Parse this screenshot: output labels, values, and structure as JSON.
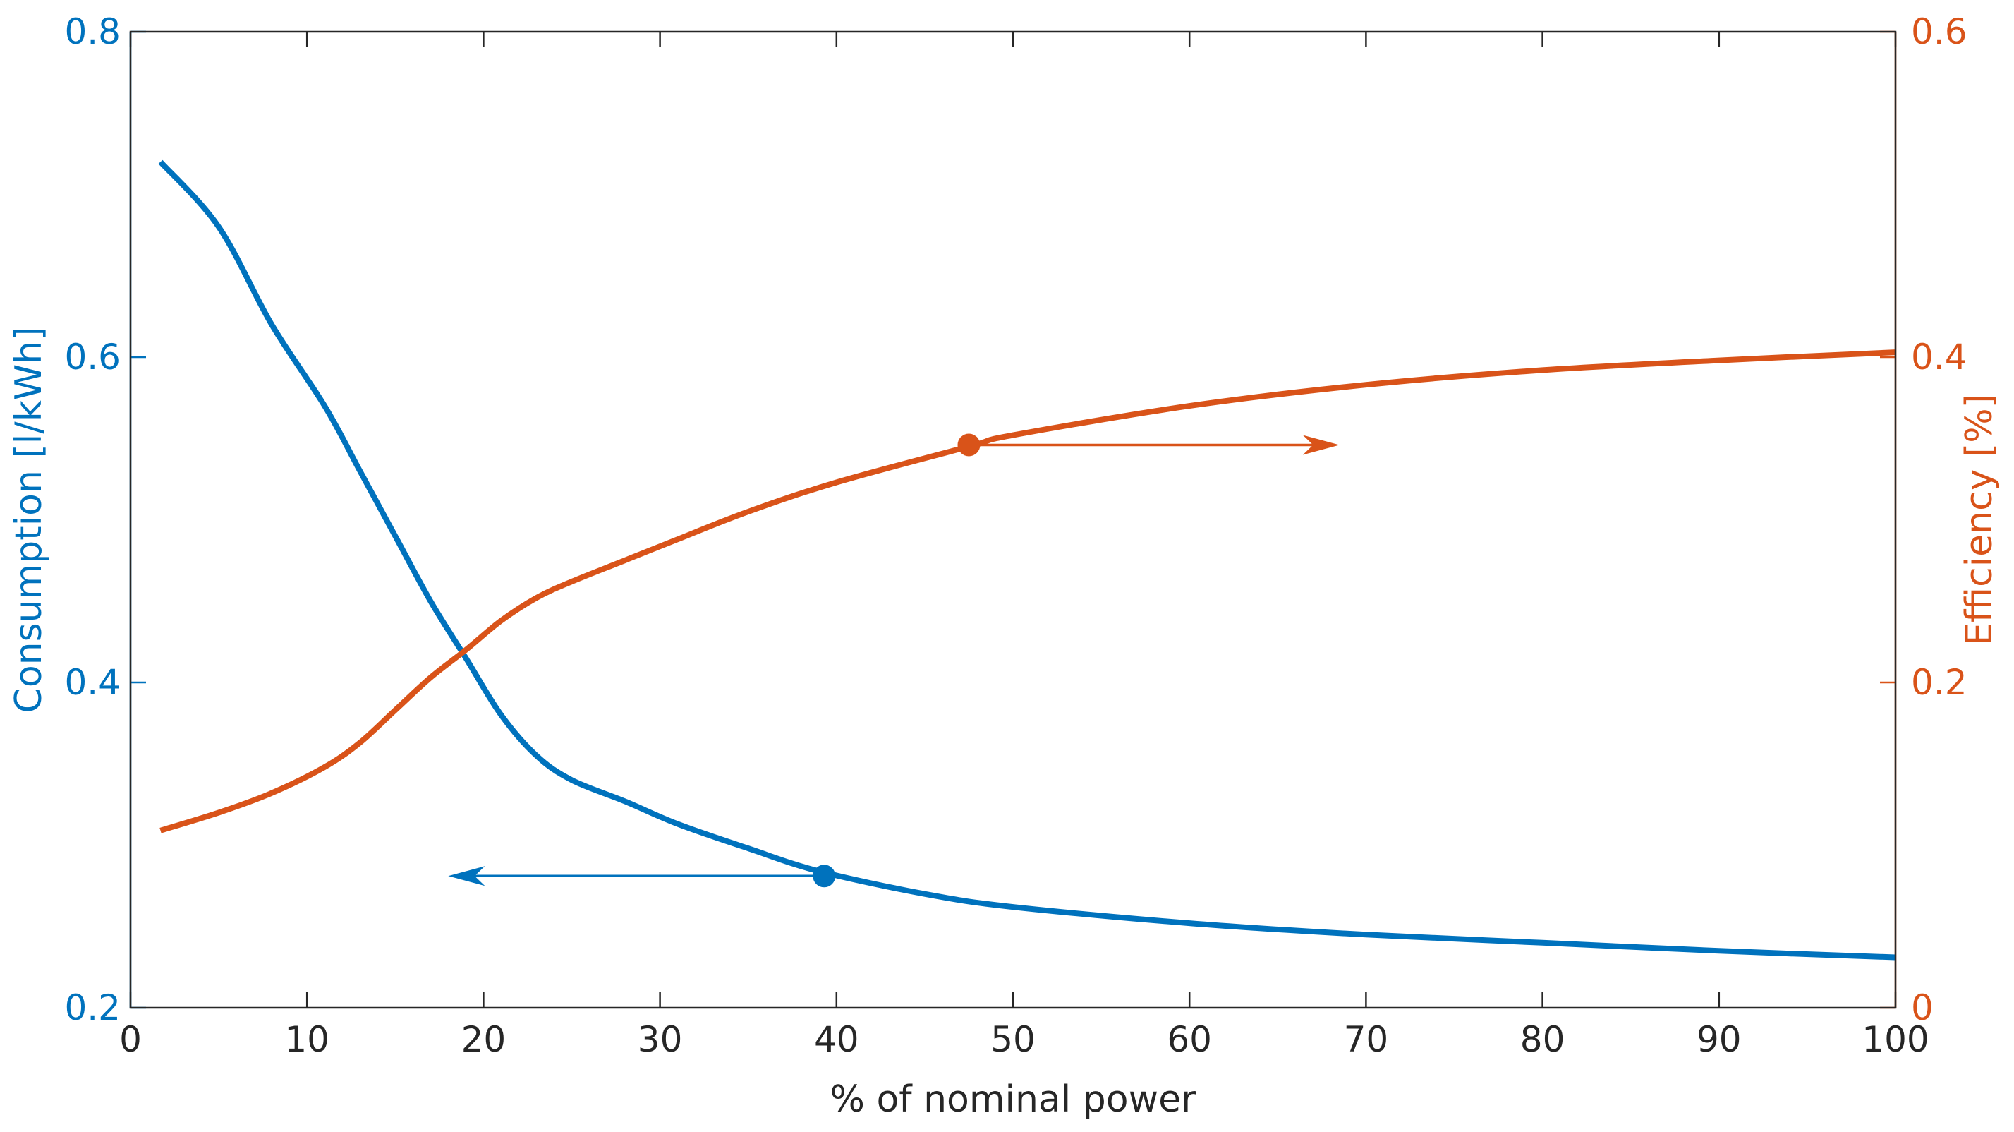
{
  "chart_data": {
    "type": "line",
    "title": "",
    "xlabel": "% of nominal power",
    "xlim": [
      0,
      100
    ],
    "x_ticks": [
      "0",
      "10",
      "20",
      "30",
      "40",
      "50",
      "60",
      "70",
      "80",
      "90",
      "100"
    ],
    "y_left": {
      "label": "Consumption [l/kWh]",
      "lim": [
        0.2,
        0.8
      ],
      "ticks": [
        "0.2",
        "0.4",
        "0.6",
        "0.8"
      ],
      "color": "#0072BD"
    },
    "y_right": {
      "label": "Efficiency [%]",
      "lim": [
        0,
        0.6
      ],
      "ticks": [
        "0",
        "0.2",
        "0.4",
        "0.6"
      ],
      "color": "#D95319"
    },
    "grid": false,
    "series": [
      {
        "name": "Consumption",
        "axis": "left",
        "color": "#0072BD",
        "x": [
          1.7,
          5,
          8,
          11,
          13,
          15,
          17,
          19,
          21,
          23,
          25,
          28,
          31,
          35,
          39,
          45,
          50,
          60,
          70,
          80,
          90,
          100
        ],
        "y": [
          0.72,
          0.68,
          0.62,
          0.57,
          0.53,
          0.49,
          0.45,
          0.415,
          0.38,
          0.355,
          0.34,
          0.327,
          0.313,
          0.298,
          0.284,
          0.27,
          0.262,
          0.252,
          0.245,
          0.24,
          0.235,
          0.231
        ],
        "marker": {
          "x": 39.3,
          "y": 0.281
        },
        "arrow": {
          "from_x": 39.3,
          "to_x": 18,
          "y": 0.281,
          "direction": "left"
        }
      },
      {
        "name": "Efficiency",
        "axis": "right",
        "color": "#D95319",
        "x": [
          1.7,
          5,
          8,
          11,
          13,
          15,
          17,
          19,
          21,
          23,
          25,
          28,
          31,
          35,
          40,
          47.5,
          50,
          60,
          70,
          80,
          90,
          100
        ],
        "y": [
          0.109,
          0.12,
          0.132,
          0.148,
          0.163,
          0.183,
          0.203,
          0.22,
          0.238,
          0.252,
          0.262,
          0.275,
          0.288,
          0.305,
          0.323,
          0.345,
          0.352,
          0.37,
          0.383,
          0.392,
          0.398,
          0.403
        ],
        "marker": {
          "x": 47.5,
          "y": 0.346
        },
        "arrow": {
          "from_x": 47.5,
          "to_x": 68.5,
          "y": 0.346,
          "direction": "right"
        }
      }
    ]
  }
}
